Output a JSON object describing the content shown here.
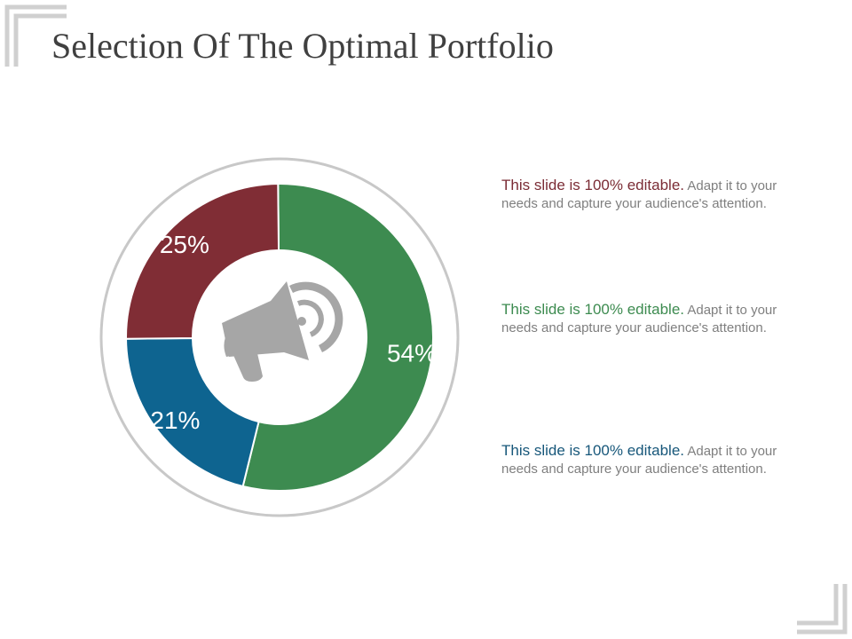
{
  "slide": {
    "title": "Selection Of The Optimal Portfolio"
  },
  "chart_data": {
    "type": "pie",
    "title": "",
    "categories": [
      "",
      "",
      ""
    ],
    "values": [
      54,
      21,
      25
    ],
    "labels": [
      "54%",
      "21%",
      "25%"
    ],
    "colors": [
      "#3d8b50",
      "#0e6490",
      "#802d35"
    ],
    "center_icon": "megaphone-icon"
  },
  "notes": [
    {
      "lead": "This slide is 100% editable.",
      "body": " Adapt it to your needs and capture your audience's attention.",
      "lead_color": "#7b2c35"
    },
    {
      "lead": "This slide is 100% editable.",
      "body": " Adapt it to your needs and capture your audience's attention.",
      "lead_color": "#3d8b50"
    },
    {
      "lead": "This slide is 100% editable.",
      "body": " Adapt it to your needs and capture your audience's attention.",
      "lead_color": "#17577a"
    }
  ]
}
